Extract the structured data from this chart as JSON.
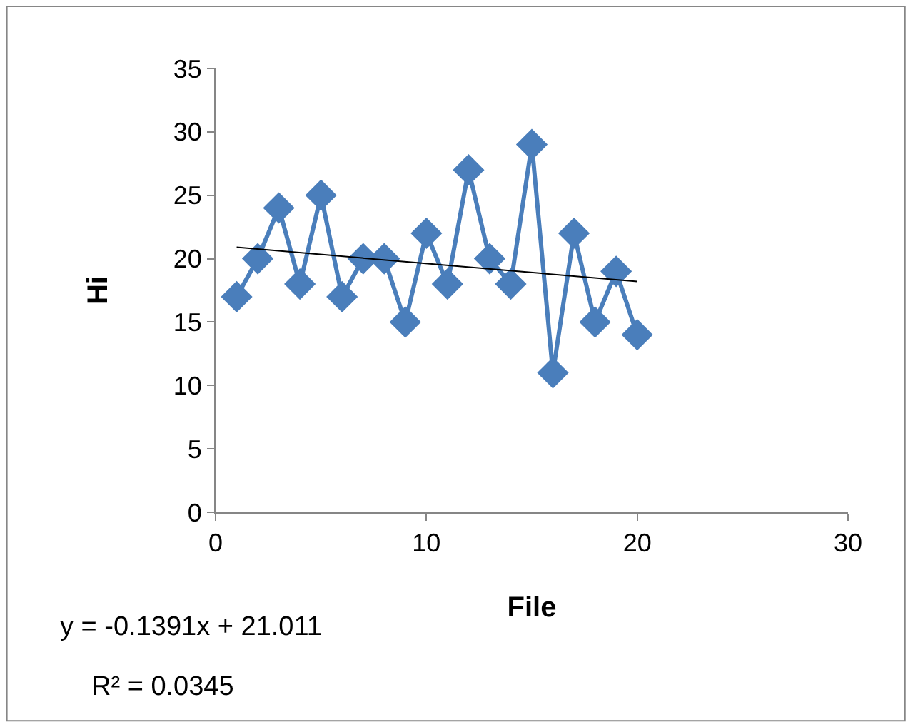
{
  "chart_data": {
    "type": "line",
    "xlabel": "File",
    "ylabel": "Hi",
    "x": [
      1,
      2,
      3,
      4,
      5,
      6,
      7,
      8,
      9,
      10,
      11,
      12,
      13,
      14,
      15,
      16,
      17,
      18,
      19,
      20
    ],
    "series": [
      {
        "color": "#4a7ebb",
        "values": [
          17,
          20,
          24,
          18,
          25,
          17,
          20,
          20,
          15,
          22,
          18,
          27,
          20,
          18,
          29,
          11,
          22,
          15,
          19,
          14
        ],
        "marker": "diamond",
        "line_style": "solid"
      },
      {
        "color": "#000000",
        "x": [
          1,
          20
        ],
        "values": [
          20.9,
          18.2
        ],
        "marker": "none",
        "line_style": "solid"
      }
    ],
    "xlim": [
      0,
      30
    ],
    "xticks": [
      0,
      10,
      20,
      30
    ],
    "ylim": [
      0,
      35
    ],
    "yticks": [
      0,
      5,
      10,
      15,
      20,
      25,
      30,
      35
    ],
    "annotations": [
      "y = -0.1391x + 21.011",
      "R² = 0.0345"
    ]
  }
}
